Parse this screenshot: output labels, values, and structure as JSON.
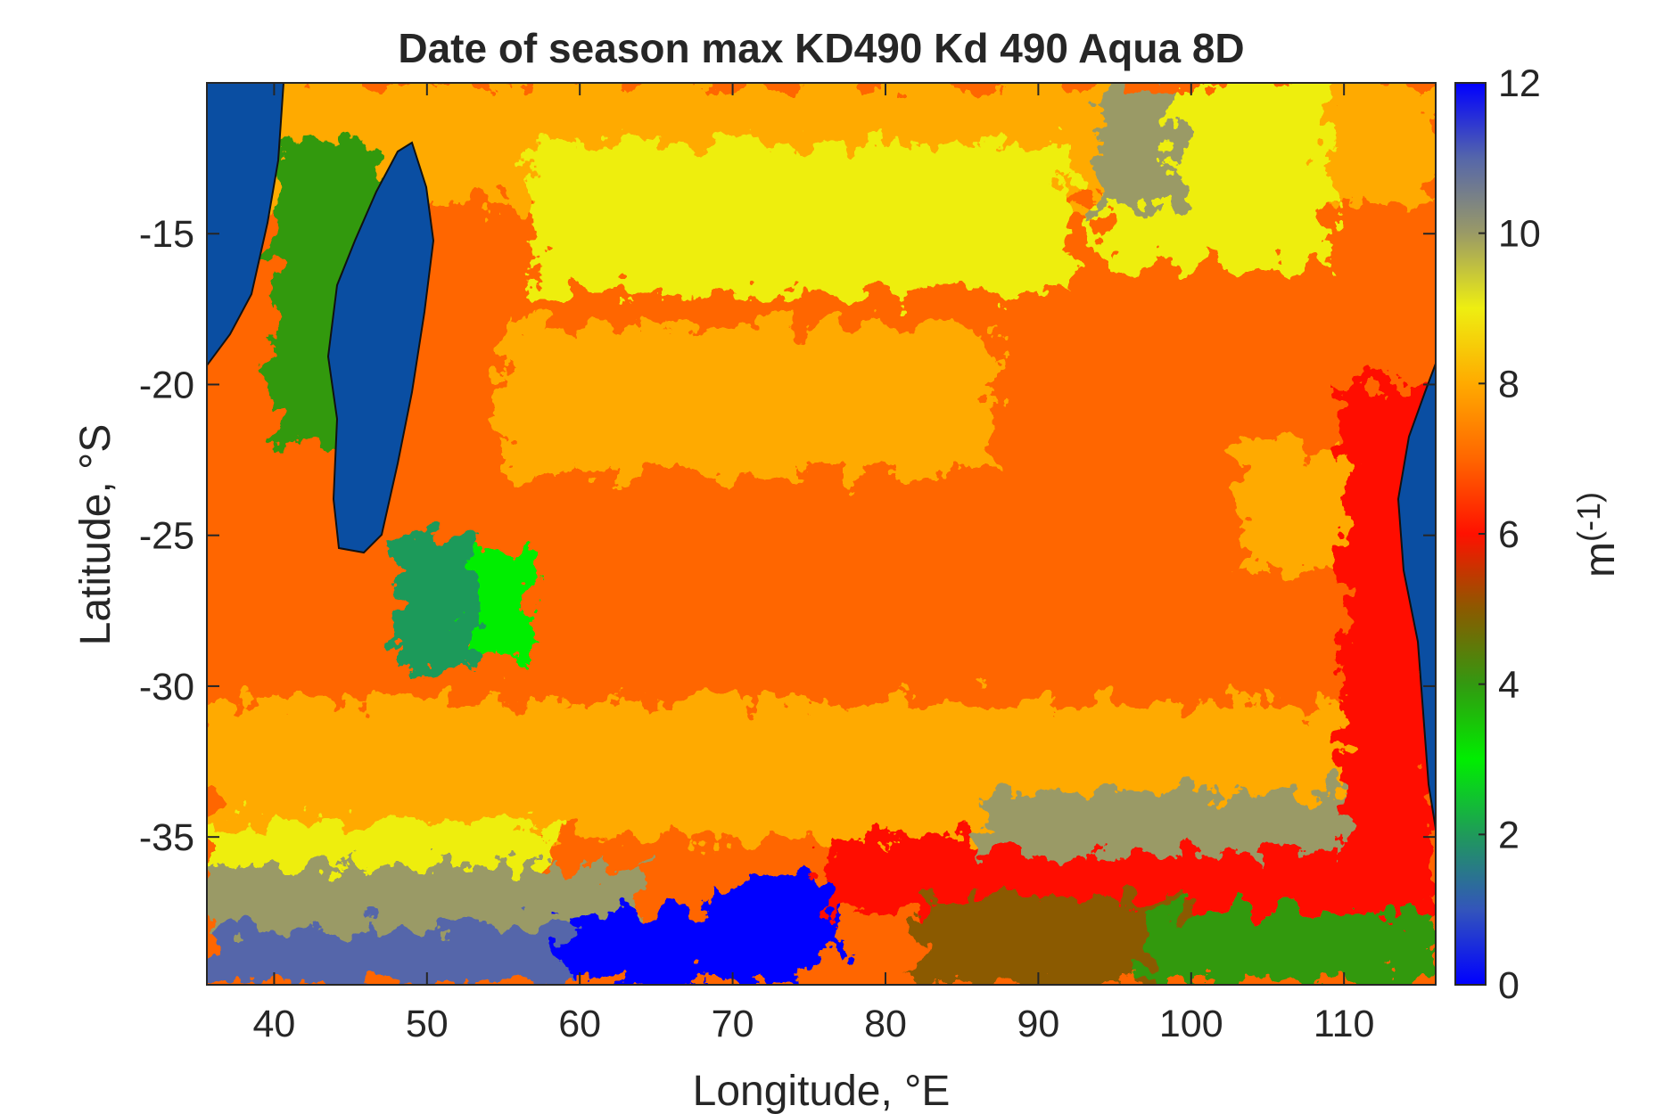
{
  "chart_data": {
    "type": "heatmap",
    "title": "Date of season max KD490 Kd 490 Aqua 8D",
    "xlabel": "Longitude, °E",
    "ylabel": "Latitude, °S",
    "xlim": [
      35.6,
      116.0
    ],
    "ylim": [
      -39.9,
      -10.0
    ],
    "x_ticks": [
      40,
      50,
      60,
      70,
      80,
      90,
      100,
      110
    ],
    "x_tick_labels": [
      "40",
      "50",
      "60",
      "70",
      "80",
      "90",
      "100",
      "110"
    ],
    "y_ticks": [
      -15,
      -20,
      -25,
      -30,
      -35
    ],
    "y_tick_labels": [
      "-15",
      "-20",
      "-25",
      "-30",
      "-35"
    ],
    "colorbar": {
      "label_base": "m",
      "label_sup": "(-1)",
      "lim": [
        0,
        12
      ],
      "ticks": [
        0,
        2,
        4,
        6,
        8,
        10,
        12
      ],
      "tick_labels": [
        "0",
        "2",
        "4",
        "6",
        "8",
        "10",
        "12"
      ],
      "colormap": [
        [
          0,
          "#0000ff"
        ],
        [
          1,
          "#3355bb"
        ],
        [
          2,
          "#1f9a5a"
        ],
        [
          3,
          "#00ee00"
        ],
        [
          4,
          "#339911"
        ],
        [
          5,
          "#8b5a00"
        ],
        [
          6,
          "#ff1100"
        ],
        [
          7,
          "#ff6600"
        ],
        [
          8,
          "#ffaa00"
        ],
        [
          9,
          "#eeee11"
        ],
        [
          10,
          "#9a9a66"
        ],
        [
          11,
          "#5566aa"
        ],
        [
          12,
          "#0000ff"
        ]
      ]
    },
    "land_color": "#0a4ea2",
    "regions": [
      {
        "lon": [
          35.6,
          116.0
        ],
        "lat": [
          -39.9,
          -10.0
        ],
        "value": 7.2
      },
      {
        "lon": [
          35.6,
          116.0
        ],
        "lat": [
          -10.0,
          -14.0
        ],
        "value": 8.4
      },
      {
        "lon": [
          57,
          92
        ],
        "lat": [
          -12,
          -17
        ],
        "value": 8.9
      },
      {
        "lon": [
          94,
          109
        ],
        "lat": [
          -10,
          -16
        ],
        "value": 9.1
      },
      {
        "lon": [
          94,
          99
        ],
        "lat": [
          -10,
          -14
        ],
        "value": 10.0
      },
      {
        "lon": [
          55,
          87
        ],
        "lat": [
          -18,
          -23
        ],
        "value": 8.0
      },
      {
        "lon": [
          103,
          110
        ],
        "lat": [
          -22,
          -26
        ],
        "value": 7.9
      },
      {
        "lon": [
          35.6,
          116.0
        ],
        "lat": [
          -30.5,
          -35.0
        ],
        "value": 8.0
      },
      {
        "lon": [
          35.6,
          58
        ],
        "lat": [
          -34.5,
          -36.5
        ],
        "value": 9.0
      },
      {
        "lon": [
          35.6,
          64
        ],
        "lat": [
          -36.0,
          -39.9
        ],
        "value": 10.0
      },
      {
        "lon": [
          35.6,
          60
        ],
        "lat": [
          -38.0,
          -39.9
        ],
        "value": 11.0
      },
      {
        "lon": [
          59,
          75
        ],
        "lat": [
          -37.5,
          -39.9
        ],
        "value": 0.2
      },
      {
        "lon": [
          69,
          77
        ],
        "lat": [
          -36.5,
          -39.0
        ],
        "value": 0.3
      },
      {
        "lon": [
          76,
          116.0
        ],
        "lat": [
          -35.0,
          -37.5
        ],
        "value": 6.1
      },
      {
        "lon": [
          86,
          116.0
        ],
        "lat": [
          -33.5,
          -35.5
        ],
        "value": 10.0
      },
      {
        "lon": [
          82,
          100
        ],
        "lat": [
          -37.0,
          -39.9
        ],
        "value": 5.2
      },
      {
        "lon": [
          97,
          116.0
        ],
        "lat": [
          -37.5,
          -39.9
        ],
        "value": 4.0
      },
      {
        "lon": [
          110,
          116.0
        ],
        "lat": [
          -20.0,
          -37.5
        ],
        "value": 6.2
      },
      {
        "lon": [
          51,
          57
        ],
        "lat": [
          -25.5,
          -29.0
        ],
        "value": 3.2
      },
      {
        "lon": [
          48,
          53
        ],
        "lat": [
          -25.0,
          -29.5
        ],
        "value": 2.0
      },
      {
        "lon": [
          40,
          47
        ],
        "lat": [
          -12.0,
          -22.0
        ],
        "value": 4.5
      }
    ]
  }
}
